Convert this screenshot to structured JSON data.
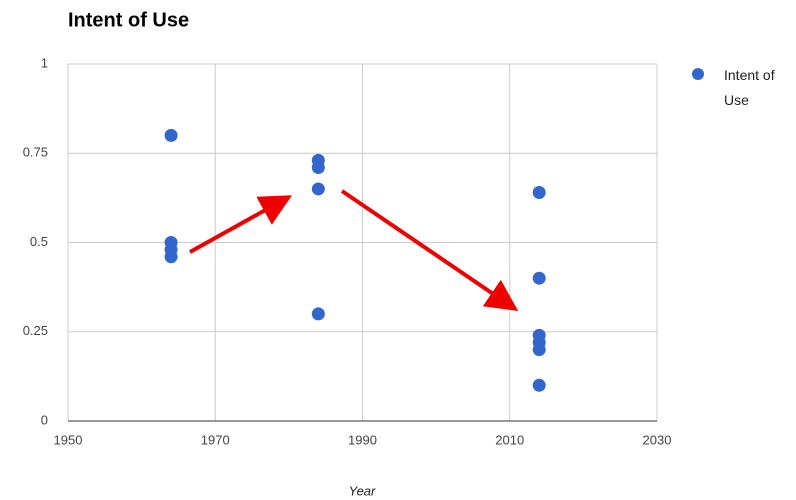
{
  "chart_data": {
    "type": "scatter",
    "title": "Intent of Use",
    "x_label": "Year",
    "series": [
      {
        "name": "Intent of Use",
        "color": "#3366cc",
        "x": [
          1964,
          1964,
          1964,
          1964,
          1984,
          1984,
          1984,
          1984,
          2014,
          2014,
          2014,
          2014,
          2014,
          2014
        ],
        "values": [
          0.8,
          0.5,
          0.48,
          0.46,
          0.73,
          0.71,
          0.65,
          0.3,
          0.64,
          0.4,
          0.24,
          0.22,
          0.2,
          0.1
        ]
      }
    ],
    "xlim": [
      1950,
      2030
    ],
    "xticks": [
      1950,
      1970,
      1990,
      2010,
      2030
    ],
    "ylim": [
      0,
      1
    ],
    "yticks": [
      0,
      0.25,
      0.5,
      0.75,
      1
    ],
    "grid": true,
    "legend": "right"
  }
}
